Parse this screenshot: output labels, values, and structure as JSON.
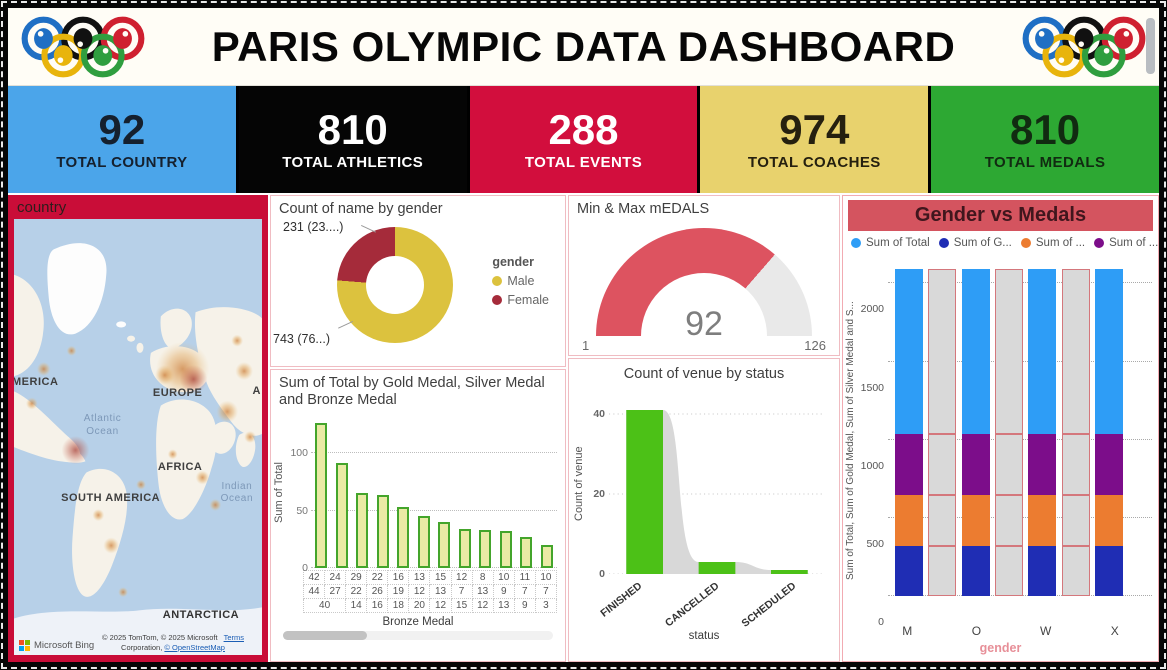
{
  "header": {
    "title": "PARIS OLYMPIC DATA DASHBOARD"
  },
  "kpis": [
    {
      "value": "92",
      "label": "TOTAL COUNTRY",
      "bg": "#4ba5ea",
      "fg": "#15202e"
    },
    {
      "value": "810",
      "label": "TOTAL ATHLETICS",
      "bg": "#050505",
      "fg": "#ffffff"
    },
    {
      "value": "288",
      "label": "TOTAL EVENTS",
      "bg": "#d20e3d",
      "fg": "#ffffff"
    },
    {
      "value": "974",
      "label": "TOTAL COACHES",
      "bg": "#e8d26d",
      "fg": "#25200f"
    },
    {
      "value": "810",
      "label": "TOTAL MEDALS",
      "bg": "#2da833",
      "fg": "#112b11"
    }
  ],
  "map_panel": {
    "title": "country",
    "labels": {
      "north_america": "MERICA",
      "europe": "EUROPE",
      "africa": "AFRICA",
      "south_america": "SOUTH AMERICA",
      "antarctica": "ANTARCTICA",
      "asia_partial": "A",
      "atlantic": "Atlantic Ocean",
      "indian": "Indian Ocean"
    },
    "logo_text": "Microsoft Bing",
    "attribution1": "© 2025 TomTom, © 2025 Microsoft",
    "terms": "Terms",
    "attribution2": "Corporation,",
    "osm": "© OpenStreetMap"
  },
  "chart_data": [
    {
      "type": "pie",
      "variant": "donut",
      "title": "Count of name by gender",
      "legend_title": "gender",
      "legend_position": "right",
      "labels": [
        "Male",
        "Female"
      ],
      "values": [
        743,
        231
      ],
      "data_labels": [
        "743 (76...)",
        "231 (23....)"
      ],
      "colors": [
        "#dcc23e",
        "#a52b3a"
      ]
    },
    {
      "type": "gauge",
      "title": "Min & Max mEDALS",
      "value": 92,
      "min": 1,
      "max": 126,
      "value_label": "92",
      "min_label": "1",
      "max_label": "126",
      "colors": {
        "fill": "#dd5360",
        "track": "#e9e9e9",
        "value_text": "#7e7e7e"
      }
    },
    {
      "type": "bar",
      "title": "Sum of Total by Gold Medal, Silver Medal and Bronze Medal",
      "ylabel": "Sum of Total",
      "xlabel": "Bronze Medal",
      "yticks": [
        0,
        50,
        100
      ],
      "ymax": 130,
      "grid": true,
      "values": [
        126,
        91,
        65,
        64,
        53,
        45,
        40,
        34,
        33,
        32,
        27,
        20
      ],
      "axis_matrix": {
        "bronze": [
          "42",
          "24",
          "29",
          "22",
          "16",
          "13",
          "15",
          "12",
          "8",
          "10",
          "11",
          "10"
        ],
        "silver": [
          "44",
          "27",
          "22",
          "26",
          "19",
          "12",
          "13",
          "7",
          "13",
          "9",
          "7",
          "7"
        ],
        "gold": [
          {
            "t": "40",
            "span": 2
          },
          {
            "t": "14"
          },
          {
            "t": "16"
          },
          {
            "t": "18"
          },
          {
            "t": "20"
          },
          {
            "t": "12"
          },
          {
            "t": "15"
          },
          {
            "t": "12"
          },
          {
            "t": "13"
          },
          {
            "t": "9"
          },
          {
            "t": "3"
          }
        ]
      },
      "colors": {
        "fill": "#eaeaa5",
        "border": "#44a52b"
      }
    },
    {
      "type": "bar",
      "variant": "bar-with-area",
      "title": "Count of venue by status",
      "categories": [
        "FINISHED",
        "CANCELLED",
        "SCHEDULED"
      ],
      "values": [
        41,
        3,
        1
      ],
      "ylabel": "Count of venue",
      "xlabel": "status",
      "yticks": [
        0,
        20,
        40
      ],
      "ymax": 44,
      "grid": true,
      "colors": {
        "bar": "#4cc117",
        "area": "#d8d8d8"
      }
    },
    {
      "type": "bar",
      "variant": "stacked-column",
      "title": "Gender vs Medals",
      "categories": [
        "M",
        "O",
        "W",
        "X"
      ],
      "series": [
        {
          "name": "Sum of G...",
          "color": "#1f2db4",
          "values": [
            320,
            320,
            320,
            320
          ]
        },
        {
          "name": "Sum of ...",
          "color": "#ec7c30",
          "values": [
            325,
            325,
            325,
            325
          ]
        },
        {
          "name": "Sum of ...",
          "color": "#7c0d8a",
          "values": [
            395,
            395,
            395,
            395
          ]
        },
        {
          "name": "Sum of Total",
          "color": "#2e9df6",
          "values": [
            1050,
            1050,
            1050,
            1050
          ]
        }
      ],
      "legend": [
        {
          "label": "Sum of Total",
          "color": "#2e9df6"
        },
        {
          "label": "Sum of G...",
          "color": "#1f2db4"
        },
        {
          "label": "Sum of ...",
          "color": "#ec7c30"
        },
        {
          "label": "Sum of ...",
          "color": "#7c0d8a"
        }
      ],
      "ylabel": "Sum of Total, Sum of Gold Medal, Sum of Silver Medal and S...",
      "xlabel": "gender",
      "yticks": [
        0,
        500,
        1000,
        1500,
        2000
      ],
      "ymax": 2150,
      "grid": true,
      "ghost_columns": true,
      "colors": {
        "ghost": "#d9d9d9",
        "ghost_border": "#d4777c",
        "banner": "#d4545f",
        "banner_text": "#40161d"
      }
    }
  ]
}
